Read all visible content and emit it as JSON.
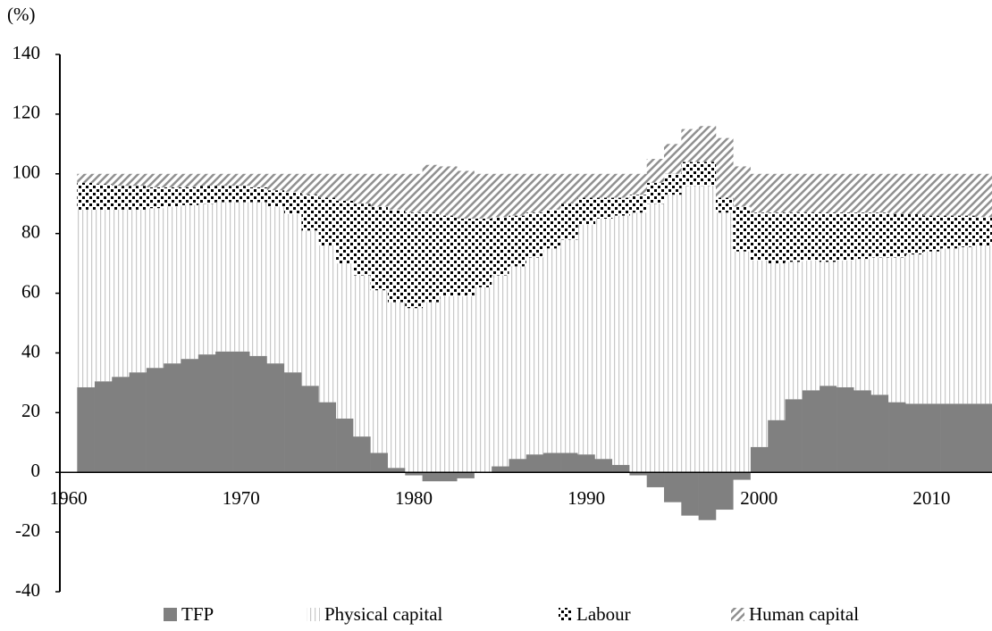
{
  "chart_data": {
    "type": "bar",
    "stacked": true,
    "y_label": "(%)",
    "x": [
      1961,
      1962,
      1963,
      1964,
      1965,
      1966,
      1967,
      1968,
      1969,
      1970,
      1971,
      1972,
      1973,
      1974,
      1975,
      1976,
      1977,
      1978,
      1979,
      1980,
      1981,
      1982,
      1983,
      1984,
      1985,
      1986,
      1987,
      1988,
      1989,
      1990,
      1991,
      1992,
      1993,
      1994,
      1995,
      1996,
      1997,
      1998,
      1999,
      2000,
      2001,
      2002,
      2003,
      2004,
      2005,
      2006,
      2007,
      2008,
      2009,
      2010,
      2011,
      2012,
      2013
    ],
    "xlim": [
      1959.5,
      2013.5
    ],
    "xticks": [
      1960,
      1970,
      1980,
      1990,
      2000,
      2010
    ],
    "ylim": [
      -40,
      140
    ],
    "yticks": [
      -40,
      -20,
      0,
      20,
      40,
      60,
      80,
      100,
      120,
      140
    ],
    "series": [
      {
        "name": "TFP",
        "color": "#808080",
        "pattern": "solid",
        "values": [
          28.5,
          30.5,
          32,
          33.5,
          35,
          36.5,
          38,
          39.5,
          40.5,
          40.5,
          39,
          36.5,
          33.5,
          29,
          23.5,
          18,
          12,
          6.5,
          1.5,
          -1,
          -3,
          -3,
          -2,
          0,
          2,
          4.5,
          6,
          6.5,
          6.5,
          6,
          4.5,
          2.5,
          -1,
          -5,
          -10,
          -14.5,
          -16,
          -12.5,
          -2.5,
          8.5,
          17.5,
          24.5,
          27.5,
          29,
          28.5,
          27.5,
          26,
          23.5,
          23,
          23,
          23,
          23,
          23
        ]
      },
      {
        "name": "Physical capital",
        "color": "#c8c8c8",
        "pattern": "vertical",
        "values": [
          59.5,
          57.5,
          56,
          54.5,
          53.5,
          52.5,
          51.5,
          50.5,
          50,
          50,
          51.5,
          52.5,
          53,
          52,
          52.5,
          52,
          54,
          54.5,
          55.5,
          55,
          57,
          59,
          59,
          62,
          64,
          64.5,
          66,
          68.5,
          71.5,
          77,
          80.5,
          83.5,
          87,
          90,
          93,
          96,
          96,
          87,
          74,
          62.5,
          52.5,
          46,
          43.5,
          41.5,
          42.5,
          44,
          46,
          48.5,
          50,
          51,
          52,
          52.5,
          53
        ]
      },
      {
        "name": "Labour",
        "color": "#000000",
        "pattern": "checker",
        "values": [
          9,
          8.5,
          8,
          8,
          7,
          6.5,
          6,
          6,
          5.5,
          5.5,
          5,
          5.5,
          7.5,
          12,
          16,
          21,
          24,
          28,
          31,
          32,
          30,
          27,
          26,
          23,
          19.5,
          17,
          15,
          13,
          12,
          9,
          7,
          6,
          6,
          7,
          7,
          8,
          8,
          5,
          15,
          16,
          17,
          16.5,
          16,
          16.5,
          16,
          15.5,
          15,
          14.5,
          13.5,
          12,
          11,
          10.5,
          9.5
        ]
      },
      {
        "name": "Human capital",
        "color": "#909090",
        "pattern": "diagonal",
        "values": [
          3,
          3.5,
          4,
          4,
          4.5,
          4.5,
          4.5,
          4,
          4,
          4,
          4.5,
          5.5,
          6,
          7,
          8,
          9,
          10,
          11,
          12,
          13,
          16,
          16.5,
          16,
          15,
          14.5,
          14,
          13,
          12,
          10,
          8,
          8,
          8,
          7,
          8,
          10,
          11,
          12,
          20,
          13.5,
          13,
          13,
          13,
          13,
          13,
          13,
          13,
          13,
          13.5,
          13.5,
          14,
          14,
          14,
          14.5
        ]
      }
    ]
  }
}
